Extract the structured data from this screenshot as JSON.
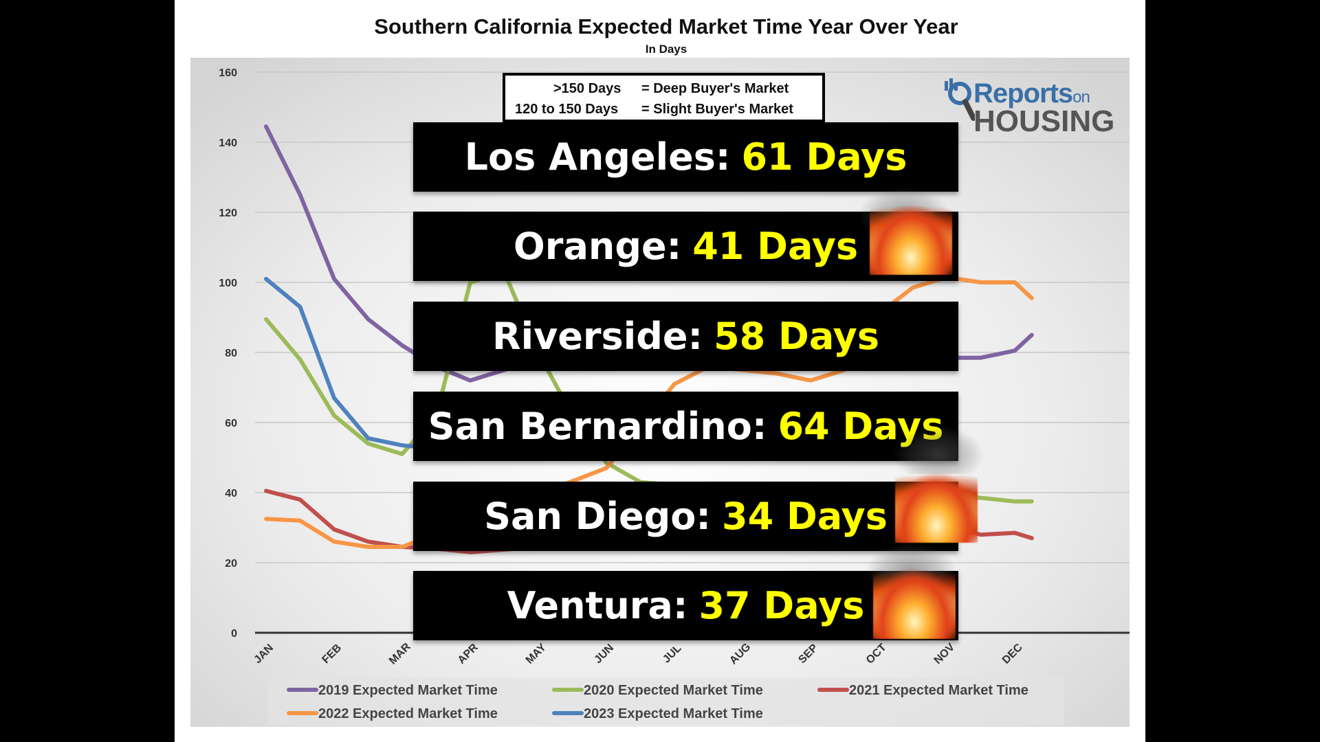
{
  "chart_data": {
    "type": "line",
    "title": "Southern California Expected Market Time Year Over Year",
    "subtitle": "In Days",
    "categories": [
      "JAN",
      "FEB",
      "MAR",
      "APR",
      "MAY",
      "JUN",
      "JUL",
      "AUG",
      "SEP",
      "OCT",
      "NOV",
      "DEC"
    ],
    "ylim": [
      0,
      160
    ],
    "yticks": [
      0,
      20,
      40,
      60,
      80,
      100,
      120,
      140,
      160
    ],
    "grid": true,
    "legend_placement": "bottom",
    "series": [
      {
        "name": "2019 Expected Market Time",
        "color": "#8064a2",
        "x": [
          0,
          0.5,
          1,
          1.5,
          2,
          2.5,
          3,
          3.5,
          4,
          4.5,
          5,
          5.5,
          6,
          6.5,
          7,
          7.5,
          8,
          8.5,
          9,
          9.5,
          10,
          10.5,
          11,
          11.25
        ],
        "values": [
          144.5,
          125,
          101,
          89.5,
          82,
          76,
          72,
          75,
          78,
          80,
          81,
          80.5,
          80,
          80,
          80,
          80,
          80,
          80,
          80,
          79.5,
          78.5,
          78.5,
          80.5,
          85
        ]
      },
      {
        "name": "2020 Expected Market Time",
        "color": "#9bbb59",
        "x": [
          0,
          0.5,
          1,
          1.5,
          2,
          2.5,
          3,
          3.5,
          4,
          4.5,
          5,
          5.5,
          9,
          9.5,
          10,
          10.5,
          11,
          11.25
        ],
        "values": [
          89.5,
          78,
          62,
          54,
          51,
          62,
          100,
          103,
          80,
          62,
          48.5,
          43,
          37,
          38.5,
          39,
          38.5,
          37.5,
          37.5
        ]
      },
      {
        "name": "2021 Expected Market Time",
        "color": "#c0504d",
        "x": [
          0,
          0.5,
          1,
          1.5,
          2,
          2.5,
          3,
          9,
          9.5,
          10,
          10.5,
          11,
          11.25
        ],
        "values": [
          40.5,
          38,
          29.5,
          26,
          24.5,
          24,
          23,
          32,
          31.5,
          30.5,
          28,
          28.5,
          27
        ]
      },
      {
        "name": "2022 Expected Market Time",
        "color": "#f79646",
        "x": [
          0,
          0.5,
          1,
          1.5,
          2,
          5,
          6,
          6.5,
          7,
          7.5,
          8,
          8.5,
          9,
          9.5,
          10,
          10.5,
          11,
          11.25
        ],
        "values": [
          32.5,
          32,
          26,
          24.5,
          24.5,
          47,
          71,
          76,
          75,
          74,
          72,
          75,
          91,
          98.5,
          101.5,
          100,
          100,
          95.5
        ]
      },
      {
        "name": "2023 Expected Market Time",
        "color": "#4f81bd",
        "x": [
          0,
          0.5,
          1,
          1.5,
          2,
          2.25
        ],
        "values": [
          101,
          93,
          67,
          55.5,
          53.5,
          53
        ]
      }
    ],
    "annotations": [
      {
        "range": ">150 Days",
        "meaning": "= Deep Buyer's Market"
      },
      {
        "range": "120 to 150 Days",
        "meaning": "= Slight Buyer's Market"
      }
    ]
  },
  "banners": [
    {
      "county": "Los Angeles:",
      "days": "61 Days"
    },
    {
      "county": "Orange:",
      "days": "41 Days"
    },
    {
      "county": "Riverside:",
      "days": "58 Days"
    },
    {
      "county": "San Bernardino:",
      "days": "64 Days"
    },
    {
      "county": "San Diego:",
      "days": "34 Days"
    },
    {
      "county": "Ventura:",
      "days": "37 Days"
    }
  ],
  "logo": {
    "line1": "Reports",
    "line1_small": "on",
    "line2": "HOUSING"
  }
}
